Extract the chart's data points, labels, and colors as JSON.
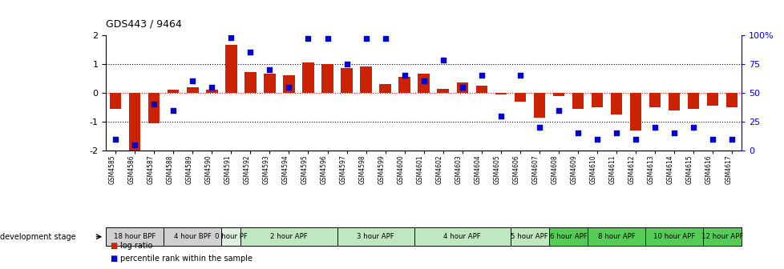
{
  "title": "GDS443 / 9464",
  "samples": [
    "GSM4585",
    "GSM4586",
    "GSM4587",
    "GSM4588",
    "GSM4589",
    "GSM4590",
    "GSM4591",
    "GSM4592",
    "GSM4593",
    "GSM4594",
    "GSM4595",
    "GSM4596",
    "GSM4597",
    "GSM4598",
    "GSM4599",
    "GSM4600",
    "GSM4601",
    "GSM4602",
    "GSM4603",
    "GSM4604",
    "GSM4605",
    "GSM4606",
    "GSM4607",
    "GSM4608",
    "GSM4609",
    "GSM4610",
    "GSM4611",
    "GSM4612",
    "GSM4613",
    "GSM4614",
    "GSM4615",
    "GSM4616",
    "GSM4617"
  ],
  "log_ratio": [
    -0.55,
    -2.0,
    -1.05,
    0.12,
    0.2,
    0.1,
    1.65,
    0.72,
    0.65,
    0.62,
    1.05,
    1.0,
    0.85,
    0.9,
    0.3,
    0.55,
    0.65,
    0.15,
    0.35,
    0.25,
    -0.05,
    -0.3,
    -0.85,
    -0.12,
    -0.55,
    -0.5,
    -0.75,
    -1.3,
    -0.5,
    -0.6,
    -0.55,
    -0.45,
    -0.5
  ],
  "percentile": [
    10,
    5,
    40,
    35,
    60,
    55,
    98,
    85,
    70,
    55,
    97,
    97,
    75,
    97,
    97,
    65,
    60,
    78,
    55,
    65,
    30,
    65,
    20,
    35,
    15,
    10,
    15,
    10,
    20,
    15,
    20,
    10,
    10
  ],
  "stages": [
    {
      "label": "18 hour BPF",
      "samples": [
        "GSM4585",
        "GSM4586",
        "GSM4587"
      ],
      "color": "#d0d0d0"
    },
    {
      "label": "4 hour BPF",
      "samples": [
        "GSM4588",
        "GSM4589",
        "GSM4590"
      ],
      "color": "#d0d0d0"
    },
    {
      "label": "0 hour PF",
      "samples": [
        "GSM4591"
      ],
      "color": "#e0f0e0"
    },
    {
      "label": "2 hour APF",
      "samples": [
        "GSM4592",
        "GSM4593",
        "GSM4594",
        "GSM4595",
        "GSM4596"
      ],
      "color": "#c0e8c0"
    },
    {
      "label": "3 hour APF",
      "samples": [
        "GSM4597",
        "GSM4598",
        "GSM4599",
        "GSM4600"
      ],
      "color": "#c0e8c0"
    },
    {
      "label": "4 hour APF",
      "samples": [
        "GSM4601",
        "GSM4602",
        "GSM4603",
        "GSM4604",
        "GSM4605"
      ],
      "color": "#c0e8c0"
    },
    {
      "label": "5 hour APF",
      "samples": [
        "GSM4606",
        "GSM4607"
      ],
      "color": "#c0e8c0"
    },
    {
      "label": "6 hour APF",
      "samples": [
        "GSM4608",
        "GSM4609"
      ],
      "color": "#55cc55"
    },
    {
      "label": "8 hour APF",
      "samples": [
        "GSM4610",
        "GSM4611",
        "GSM4612"
      ],
      "color": "#55cc55"
    },
    {
      "label": "10 hour APF",
      "samples": [
        "GSM4613",
        "GSM4614",
        "GSM4615"
      ],
      "color": "#55cc55"
    },
    {
      "label": "12 hour APF",
      "samples": [
        "GSM4616",
        "GSM4617"
      ],
      "color": "#55cc55"
    }
  ],
  "bar_color": "#cc2200",
  "dot_color": "#0000cc",
  "ylim": [
    -2,
    2
  ],
  "y2lim": [
    0,
    100
  ],
  "yticks": [
    -2,
    -1,
    0,
    1,
    2
  ],
  "y2ticks": [
    0,
    25,
    50,
    75,
    100
  ],
  "bg_color": "#ffffff",
  "legend_items": [
    {
      "label": "log ratio",
      "color": "#cc2200",
      "marker": "s"
    },
    {
      "label": "percentile rank within the sample",
      "color": "#0000cc",
      "marker": "s"
    }
  ]
}
